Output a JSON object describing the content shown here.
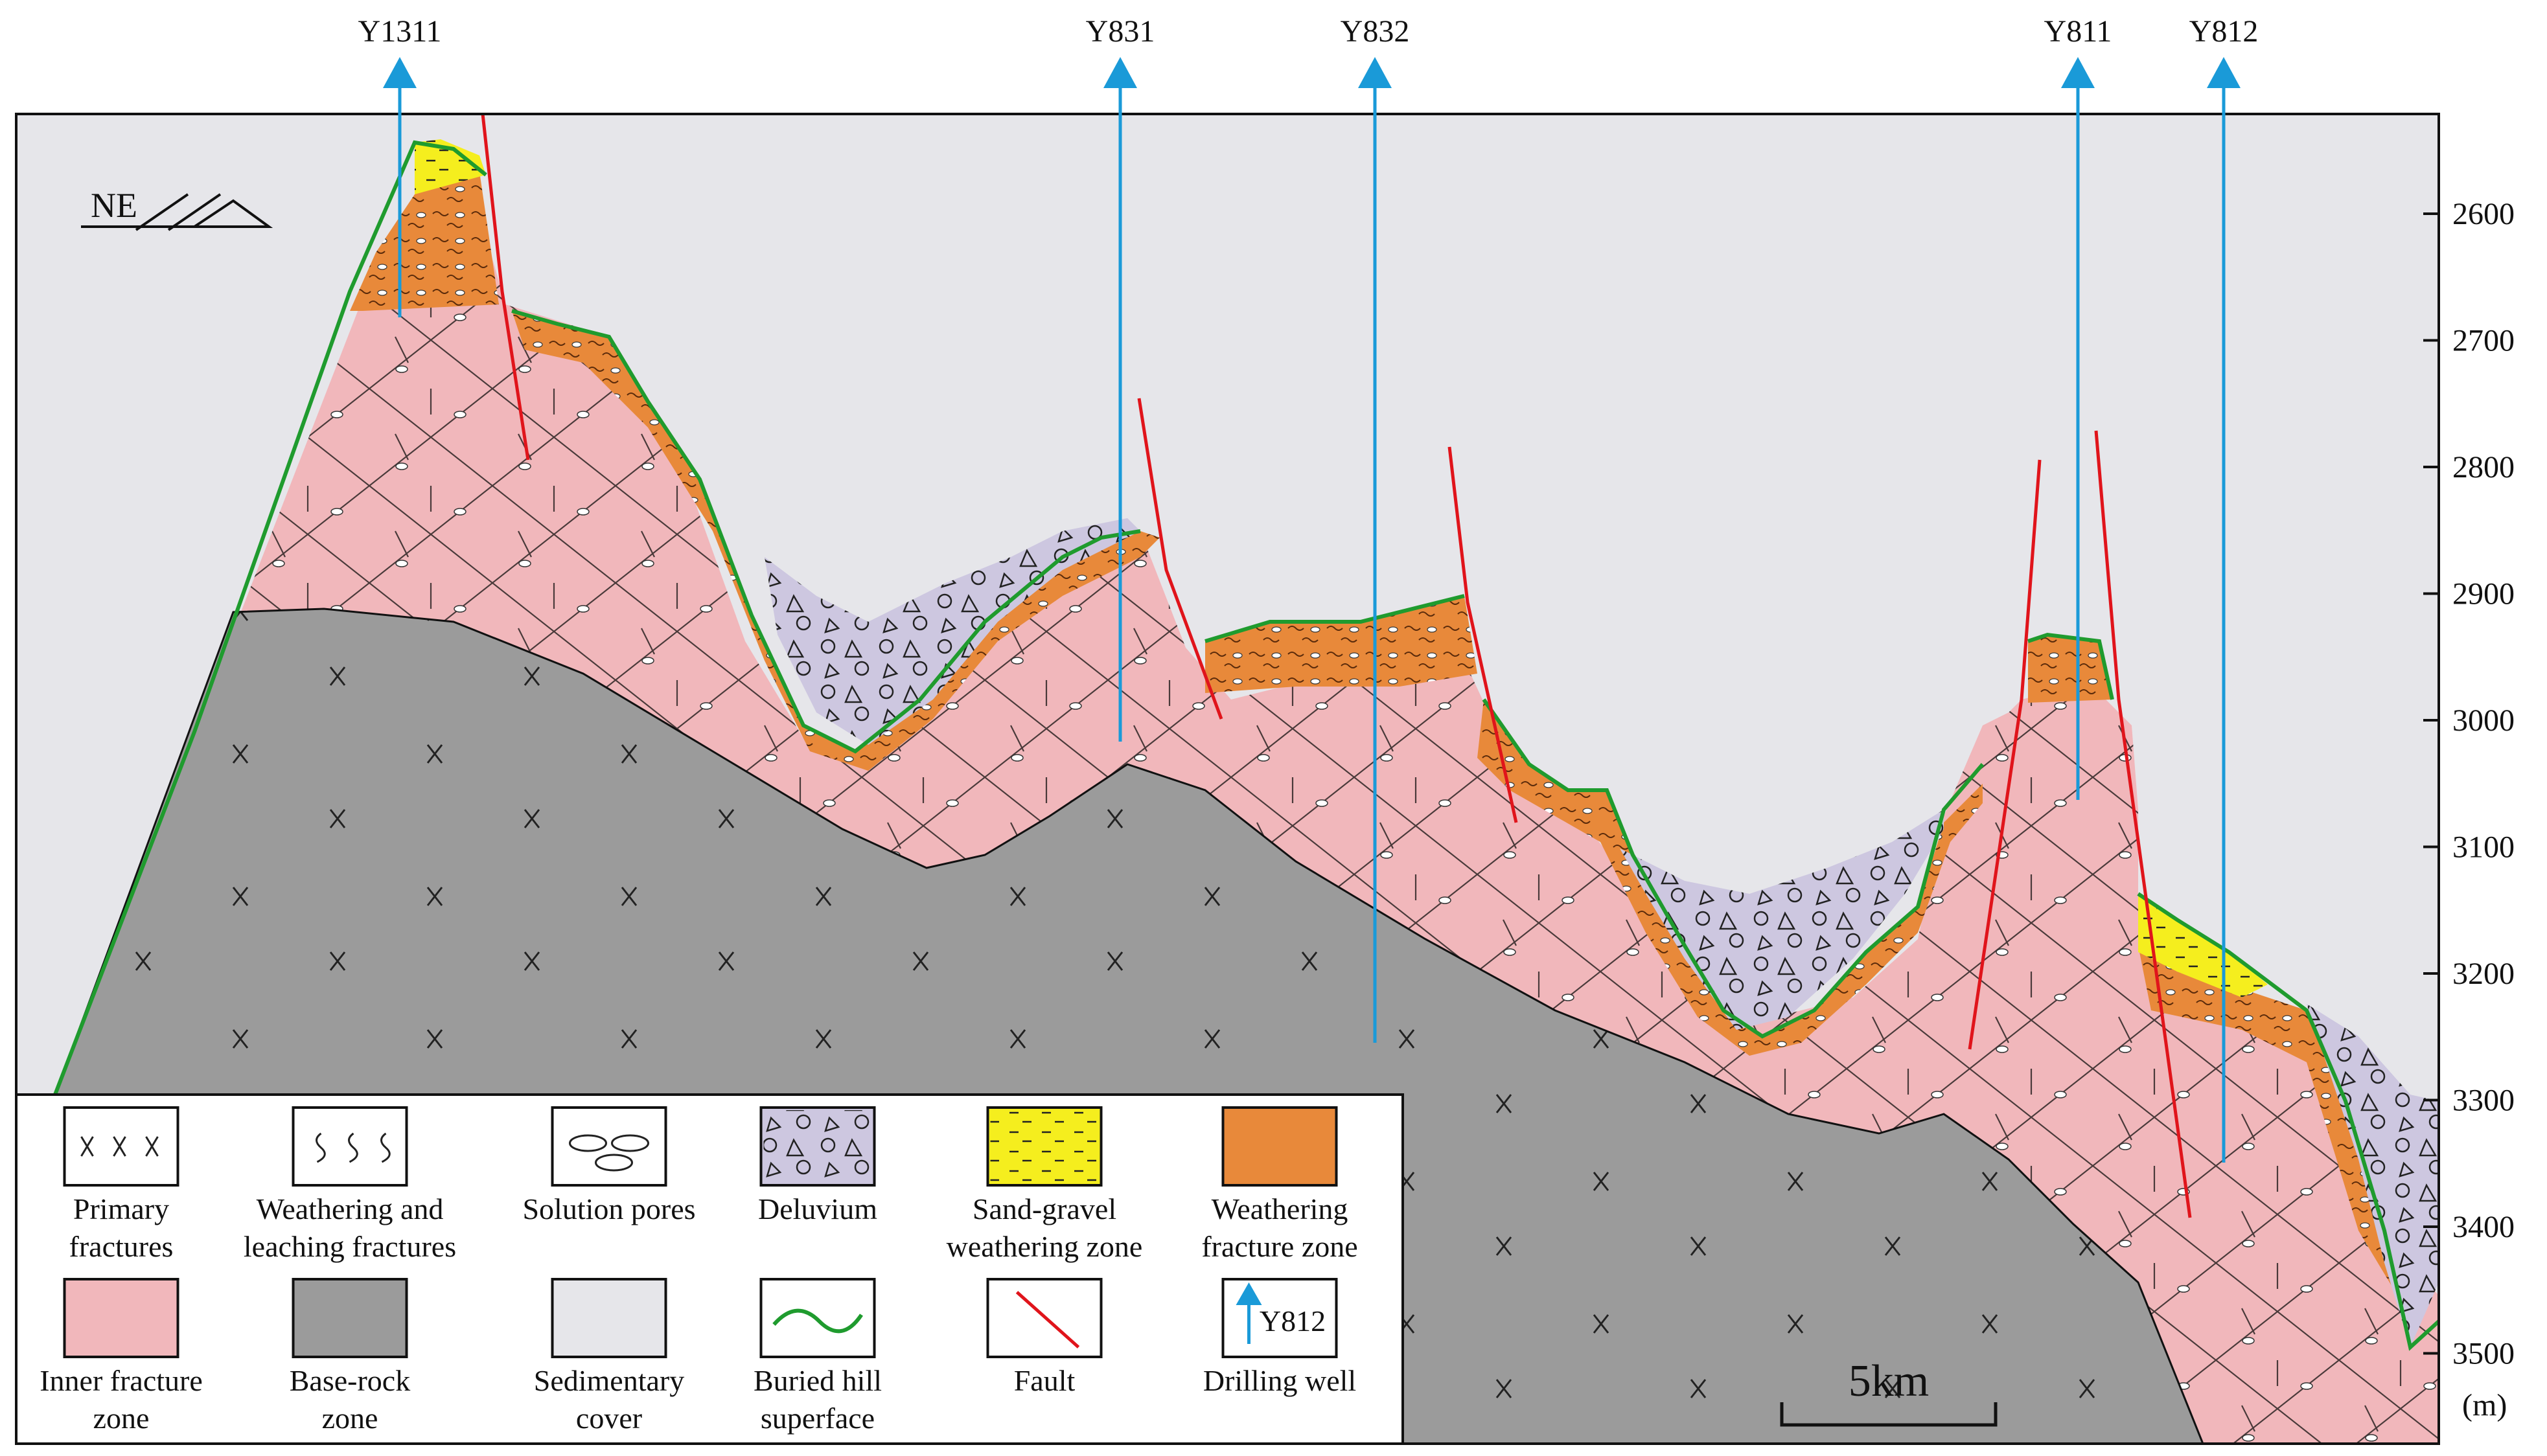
{
  "wells": [
    {
      "name": "Y1311"
    },
    {
      "name": "Y831"
    },
    {
      "name": "Y832"
    },
    {
      "name": "Y811"
    },
    {
      "name": "Y812"
    }
  ],
  "depth_axis": {
    "ticks": [
      "2600",
      "2700",
      "2800",
      "2900",
      "3000",
      "3100",
      "3200",
      "3300",
      "3400",
      "3500"
    ],
    "unit": "(m)"
  },
  "orientation_label": "NE",
  "scale_bar": {
    "label": "5km"
  },
  "legend": [
    {
      "id": "primary",
      "lines": [
        "Primary",
        "fractures"
      ]
    },
    {
      "id": "weathering-leaching",
      "lines": [
        "Weathering and",
        "leaching fractures"
      ]
    },
    {
      "id": "solution",
      "lines": [
        "Solution pores"
      ]
    },
    {
      "id": "deluvium",
      "lines": [
        "Deluvium"
      ]
    },
    {
      "id": "sand-gravel",
      "lines": [
        "Sand-gravel",
        "weathering zone"
      ]
    },
    {
      "id": "weathering-zone",
      "lines": [
        "Weathering",
        "fracture zone"
      ]
    },
    {
      "id": "inner",
      "lines": [
        "Inner fracture",
        "zone"
      ]
    },
    {
      "id": "base-rock",
      "lines": [
        "Base-rock",
        "zone"
      ]
    },
    {
      "id": "sedimentary",
      "lines": [
        "Sedimentary",
        "cover"
      ]
    },
    {
      "id": "buried-hill",
      "lines": [
        "Buried hill",
        "superface"
      ]
    },
    {
      "id": "fault",
      "lines": [
        "Fault"
      ]
    },
    {
      "id": "drilling-well",
      "lines": [
        "Drilling well"
      ],
      "swatch_text": "Y812"
    }
  ],
  "colors": {
    "sedimentary_cover": "#e6e6ea",
    "inner_fracture": "#f1b7bb",
    "base_rock": "#9b9b9b",
    "weathering_fracture": "#e8893a",
    "sand_gravel": "#f5ee1e",
    "deluvium": "#cdc7e0",
    "buried_hill_line": "#1f9b2e",
    "fault": "#e0141b",
    "well": "#1a9ad8"
  }
}
